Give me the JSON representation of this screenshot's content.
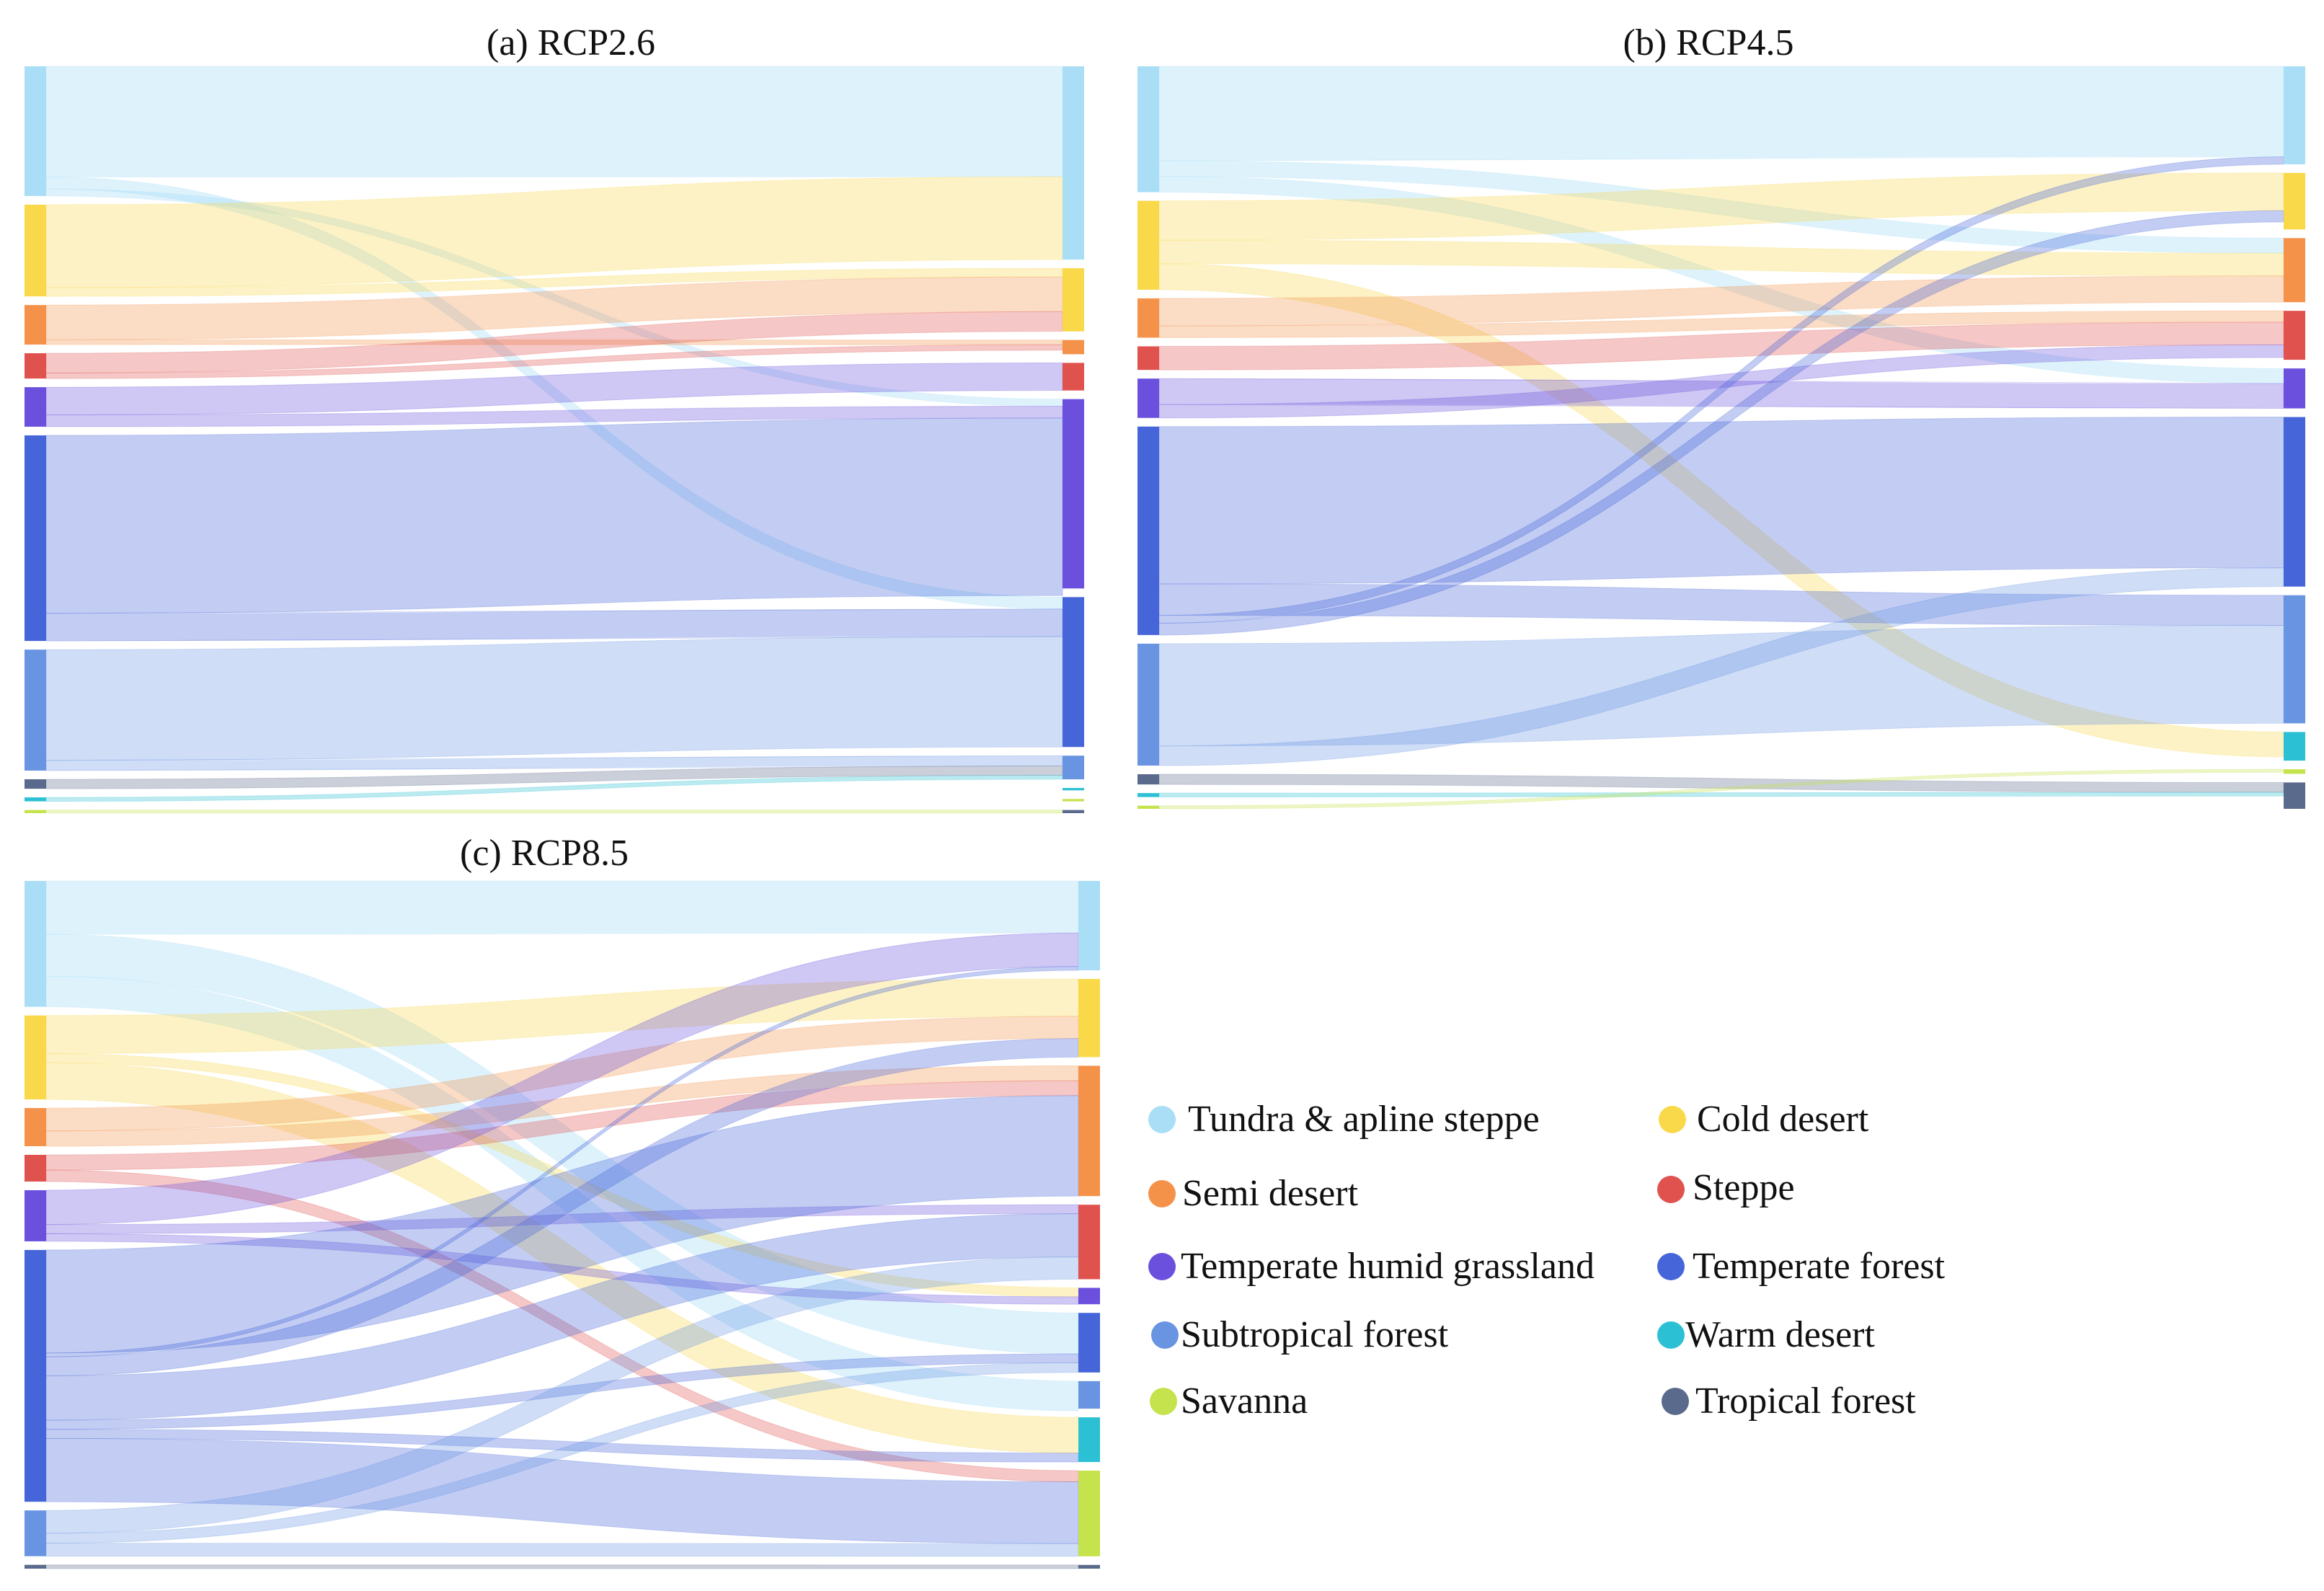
{
  "figure": {
    "legend": [
      {
        "key": "tundra",
        "label": "Tundra & apline steppe",
        "color": "#a9def6"
      },
      {
        "key": "cold",
        "label": "Cold desert",
        "color": "#f9d84a"
      },
      {
        "key": "semi",
        "label": "Semi desert",
        "color": "#f4924a"
      },
      {
        "key": "steppe",
        "label": "Steppe",
        "color": "#e0524e"
      },
      {
        "key": "thg",
        "label": "Temperate humid grassland",
        "color": "#6b50dd"
      },
      {
        "key": "tf",
        "label": "Temperate forest",
        "color": "#4565d9"
      },
      {
        "key": "subf",
        "label": "Subtropical forest",
        "color": "#6994e2"
      },
      {
        "key": "wd",
        "label": "Warm desert",
        "color": "#2cc0d4"
      },
      {
        "key": "sav",
        "label": "Savanna",
        "color": "#c4e34c"
      },
      {
        "key": "trop",
        "label": "Tropical forest",
        "color": "#5a6a8c"
      }
    ]
  },
  "chart_data": [
    {
      "type": "sankey",
      "title": "(a) RCP2.6",
      "nodes_left": {
        "tundra": 16.4,
        "cold": 11.6,
        "semi": 5.0,
        "steppe": 3.2,
        "thg": 5.0,
        "tf": 26.0,
        "subf": 15.3,
        "trop": 1.2,
        "wd": 0.5,
        "sav": 0.4
      },
      "nodes_right": {
        "tundra": 24.5,
        "cold": 8.0,
        "semi": 1.8,
        "steppe": 3.5,
        "thg": 24.0,
        "tf": 19.0,
        "subf": 3.0,
        "trop": 0.4,
        "wd": 0.3,
        "sav": 0.3
      },
      "flows": [
        [
          "tundra",
          "tundra",
          14.0
        ],
        [
          "tundra",
          "tf",
          1.5
        ],
        [
          "tundra",
          "thg",
          0.9
        ],
        [
          "cold",
          "tundra",
          10.5
        ],
        [
          "cold",
          "cold",
          1.1
        ],
        [
          "semi",
          "cold",
          4.4
        ],
        [
          "semi",
          "semi",
          0.6
        ],
        [
          "steppe",
          "cold",
          2.5
        ],
        [
          "steppe",
          "semi",
          0.7
        ],
        [
          "thg",
          "steppe",
          3.5
        ],
        [
          "thg",
          "thg",
          1.5
        ],
        [
          "tf",
          "thg",
          22.5
        ],
        [
          "tf",
          "tf",
          3.5
        ],
        [
          "subf",
          "tf",
          14.0
        ],
        [
          "subf",
          "subf",
          1.3
        ],
        [
          "trop",
          "subf",
          1.2
        ],
        [
          "wd",
          "subf",
          0.5
        ],
        [
          "sav",
          "trop",
          0.4
        ]
      ]
    },
    {
      "type": "sankey",
      "title": "(b) RCP4.5",
      "nodes_left": {
        "tundra": 16.0,
        "cold": 11.3,
        "semi": 5.0,
        "steppe": 3.0,
        "thg": 5.0,
        "tf": 26.5,
        "subf": 15.5,
        "trop": 1.3,
        "wd": 0.5,
        "sav": 0.4
      },
      "nodes_right": {
        "tundra": 13.0,
        "cold": 7.5,
        "semi": 8.5,
        "steppe": 6.5,
        "thg": 5.3,
        "tf": 22.5,
        "subf": 17.0,
        "wd": 3.8,
        "sav": 0.6,
        "trop": 3.5
      },
      "flows": [
        [
          "tundra",
          "tundra",
          12.0
        ],
        [
          "tundra",
          "semi",
          2.0
        ],
        [
          "tundra",
          "thg",
          2.0
        ],
        [
          "cold",
          "cold",
          5.0
        ],
        [
          "cold",
          "semi",
          3.0
        ],
        [
          "cold",
          "wd",
          3.3
        ],
        [
          "semi",
          "semi",
          3.5
        ],
        [
          "semi",
          "steppe",
          1.5
        ],
        [
          "steppe",
          "steppe",
          3.0
        ],
        [
          "thg",
          "thg",
          3.3
        ],
        [
          "thg",
          "steppe",
          1.7
        ],
        [
          "tf",
          "tf",
          20.0
        ],
        [
          "tf",
          "subf",
          4.0
        ],
        [
          "tf",
          "tundra",
          1.0
        ],
        [
          "tf",
          "cold",
          1.5
        ],
        [
          "subf",
          "subf",
          13.0
        ],
        [
          "subf",
          "tf",
          2.5
        ],
        [
          "trop",
          "trop",
          1.3
        ],
        [
          "wd",
          "trop",
          0.5
        ],
        [
          "sav",
          "sav",
          0.4
        ]
      ]
    },
    {
      "type": "sankey",
      "title": "(c) RCP8.5",
      "nodes_left": {
        "tundra": 16.5,
        "cold": 11.0,
        "semi": 5.0,
        "steppe": 3.5,
        "thg": 6.7,
        "tf": 33.0,
        "subf": 6.0,
        "trop": 0.5
      },
      "nodes_right": {
        "tundra": 12.0,
        "cold": 10.5,
        "semi": 17.5,
        "steppe": 10.0,
        "thg": 2.2,
        "tf": 8.0,
        "subf": 3.7,
        "wd": 6.0,
        "sav": 11.5,
        "trop": 0.5
      },
      "flows": [
        [
          "tundra",
          "tundra",
          7.0
        ],
        [
          "tundra",
          "tf",
          5.5
        ],
        [
          "tundra",
          "subf",
          4.0
        ],
        [
          "cold",
          "cold",
          5.0
        ],
        [
          "cold",
          "thg",
          1.2
        ],
        [
          "cold",
          "wd",
          4.8
        ],
        [
          "semi",
          "cold",
          3.0
        ],
        [
          "semi",
          "semi",
          2.0
        ],
        [
          "steppe",
          "semi",
          2.0
        ],
        [
          "steppe",
          "sav",
          1.5
        ],
        [
          "thg",
          "tundra",
          4.5
        ],
        [
          "thg",
          "steppe",
          1.2
        ],
        [
          "thg",
          "thg",
          1.0
        ],
        [
          "tf",
          "semi",
          13.5
        ],
        [
          "tf",
          "tundra",
          0.5
        ],
        [
          "tf",
          "cold",
          2.5
        ],
        [
          "tf",
          "steppe",
          5.8
        ],
        [
          "tf",
          "tf",
          1.2
        ],
        [
          "tf",
          "wd",
          1.2
        ],
        [
          "tf",
          "sav",
          8.3
        ],
        [
          "subf",
          "steppe",
          3.0
        ],
        [
          "subf",
          "tf",
          1.3
        ],
        [
          "subf",
          "sav",
          1.7
        ],
        [
          "trop",
          "trop",
          0.5
        ]
      ]
    }
  ]
}
